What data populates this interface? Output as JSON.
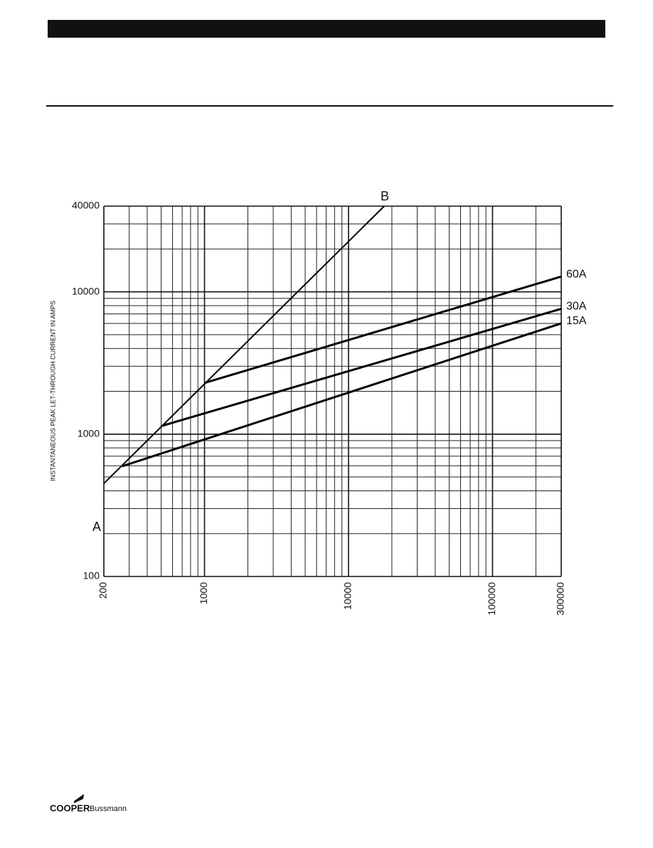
{
  "chart_data": {
    "type": "line",
    "y_label": "INSTANTANEOUS PEAK LET-THROUGH CURRENT IN AMPS",
    "log_x": true,
    "log_y": true,
    "xlim": [
      200,
      300000
    ],
    "ylim": [
      100,
      40000
    ],
    "xticks": [
      200,
      1000,
      10000,
      100000,
      300000
    ],
    "yticks": [
      100,
      1000,
      10000,
      40000
    ],
    "x_minor_grid": [
      300,
      400,
      500,
      600,
      700,
      800,
      900,
      2000,
      3000,
      4000,
      5000,
      6000,
      7000,
      8000,
      9000,
      20000,
      30000,
      40000,
      50000,
      60000,
      70000,
      80000,
      90000,
      200000
    ],
    "y_minor_grid": [
      200,
      300,
      400,
      500,
      600,
      700,
      800,
      900,
      2000,
      3000,
      4000,
      5000,
      6000,
      7000,
      8000,
      9000,
      20000,
      30000
    ],
    "grid": true,
    "annotations": [
      "A",
      "B"
    ],
    "series": [
      {
        "color": "#000000",
        "x": [
          200,
          17700
        ],
        "values": [
          450,
          40000
        ]
      },
      {
        "name": "60A",
        "color": "#000000",
        "x": [
          1015,
          300000
        ],
        "values": [
          2300,
          12800
        ]
      },
      {
        "name": "30A",
        "color": "#000000",
        "x": [
          508,
          300000
        ],
        "values": [
          1145,
          7600
        ]
      },
      {
        "name": "15A",
        "color": "#000000",
        "x": [
          268,
          300000
        ],
        "values": [
          595,
          6000
        ]
      }
    ]
  },
  "logo": {
    "brand": "COOPER",
    "sub": "Bussmann"
  }
}
